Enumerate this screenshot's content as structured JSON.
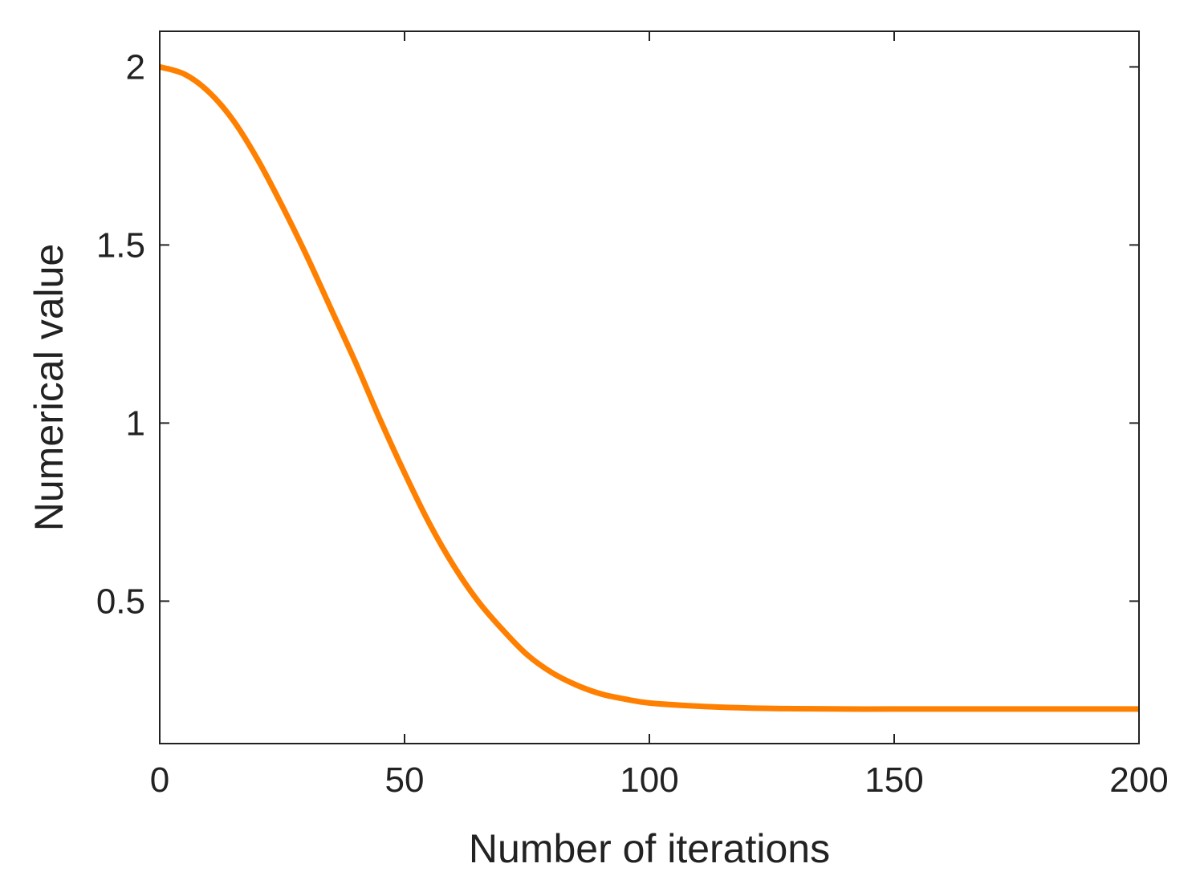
{
  "chart_data": {
    "type": "line",
    "title": "",
    "xlabel": "Number of iterations",
    "ylabel": "Numerical value",
    "xlim": [
      0,
      200
    ],
    "ylim": [
      0.1,
      2.1
    ],
    "xticks": [
      0,
      50,
      100,
      150,
      200
    ],
    "xtick_labels": [
      "0",
      "50",
      "100",
      "150",
      "200"
    ],
    "yticks": [
      0.5,
      1,
      1.5,
      2
    ],
    "ytick_labels": [
      "0.5",
      "1",
      "1.5",
      "2"
    ],
    "grid": false,
    "legend": "none",
    "series": [
      {
        "color": "#ff8000",
        "x": [
          0,
          5,
          10,
          15,
          20,
          25,
          30,
          35,
          40,
          45,
          50,
          55,
          60,
          65,
          70,
          75,
          80,
          85,
          90,
          95,
          100,
          110,
          120,
          130,
          140,
          150,
          160,
          170,
          180,
          190,
          200
        ],
        "y": [
          2.0,
          1.98,
          1.93,
          1.85,
          1.74,
          1.61,
          1.47,
          1.32,
          1.17,
          1.01,
          0.86,
          0.72,
          0.6,
          0.5,
          0.42,
          0.35,
          0.3,
          0.265,
          0.24,
          0.225,
          0.214,
          0.205,
          0.2,
          0.198,
          0.197,
          0.197,
          0.197,
          0.197,
          0.197,
          0.197,
          0.197
        ]
      }
    ]
  }
}
